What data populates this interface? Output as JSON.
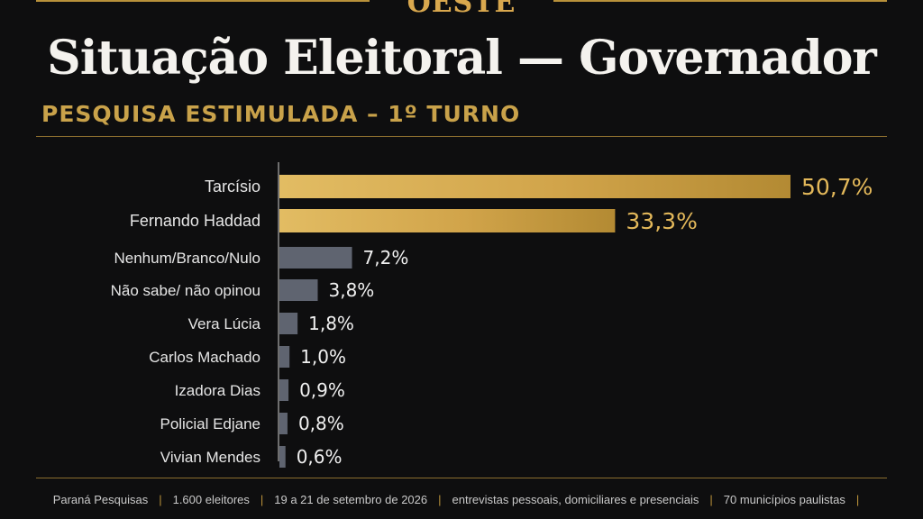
{
  "header": {
    "brand": "OESTE",
    "title": "Situação Eleitoral — Governador",
    "subtitle": "PESQUISA ESTIMULADA – 1º TURNO"
  },
  "colors": {
    "highlight_bar": "#d4a84a",
    "other_bar": "#5f6470",
    "background": "#0e0e0f",
    "accent": "#c9a24a"
  },
  "chart_data": {
    "type": "bar",
    "orientation": "horizontal",
    "title": "Situação Eleitoral — Governador",
    "subtitle": "PESQUISA ESTIMULADA – 1º TURNO",
    "xlim": [
      0,
      50.7
    ],
    "grid": false,
    "categories": [
      "Tarcísio",
      "Fernando Haddad",
      "Nenhum/Branco/Nulo",
      "Não sabe/ não opinou",
      "Vera Lúcia",
      "Carlos Machado",
      "Izadora Dias",
      "Policial Edjane",
      "Vivian Mendes"
    ],
    "values": [
      50.7,
      33.3,
      7.2,
      3.8,
      1.8,
      1.0,
      0.9,
      0.8,
      0.6
    ],
    "value_labels": [
      "50,7%",
      "33,3%",
      "7,2%",
      "3,8%",
      "1,8%",
      "1,0%",
      "0,9%",
      "0,8%",
      "0,6%"
    ],
    "highlighted": [
      true,
      true,
      false,
      false,
      false,
      false,
      false,
      false,
      false
    ]
  },
  "footer": {
    "items": [
      "Paraná Pesquisas",
      "1.600 eleitores",
      "19 a 21 de setembro de 2026",
      "entrevistas pessoais, domiciliares e presenciais",
      "70 municípios paulistas"
    ]
  }
}
